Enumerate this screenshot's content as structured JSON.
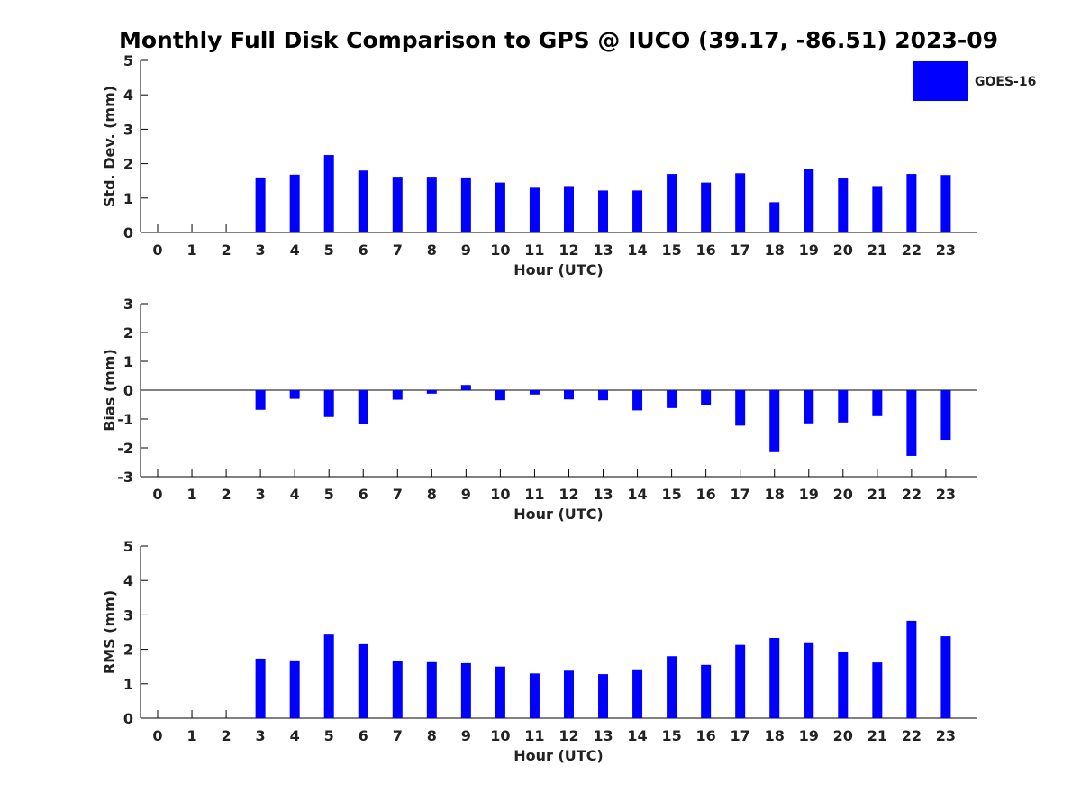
{
  "title": "Monthly Full Disk Comparison to GPS @ IUCO (39.17, -86.51) 2023-09",
  "legend": {
    "label": "GOES-16",
    "color": "#0000ff",
    "placement": "top-right"
  },
  "chart_data": [
    {
      "type": "bar",
      "xlabel": "Hour (UTC)",
      "ylabel": "Std. Dev. (mm)",
      "ylim": [
        0,
        5
      ],
      "yticks": [
        0,
        1,
        2,
        3,
        4,
        5
      ],
      "categories": [
        "0",
        "1",
        "2",
        "3",
        "4",
        "5",
        "6",
        "7",
        "8",
        "9",
        "10",
        "11",
        "12",
        "13",
        "14",
        "15",
        "16",
        "17",
        "18",
        "19",
        "20",
        "21",
        "22",
        "23"
      ],
      "series": [
        {
          "name": "GOES-16",
          "color": "#0000ff",
          "values": [
            null,
            null,
            null,
            1.6,
            1.68,
            2.25,
            1.8,
            1.62,
            1.62,
            1.6,
            1.45,
            1.3,
            1.35,
            1.22,
            1.22,
            1.7,
            1.45,
            1.72,
            0.88,
            1.85,
            1.57,
            1.35,
            1.7,
            1.67
          ]
        }
      ]
    },
    {
      "type": "bar",
      "xlabel": "Hour (UTC)",
      "ylabel": "Bias (mm)",
      "ylim": [
        -3,
        3
      ],
      "yticks": [
        -3,
        -2,
        -1,
        0,
        1,
        2,
        3
      ],
      "categories": [
        "0",
        "1",
        "2",
        "3",
        "4",
        "5",
        "6",
        "7",
        "8",
        "9",
        "10",
        "11",
        "12",
        "13",
        "14",
        "15",
        "16",
        "17",
        "18",
        "19",
        "20",
        "21",
        "22",
        "23"
      ],
      "series": [
        {
          "name": "GOES-16",
          "color": "#0000ff",
          "values": [
            null,
            null,
            null,
            -0.68,
            -0.3,
            -0.93,
            -1.18,
            -0.33,
            -0.12,
            0.18,
            -0.35,
            -0.15,
            -0.32,
            -0.35,
            -0.7,
            -0.62,
            -0.52,
            -1.23,
            -2.15,
            -1.15,
            -1.12,
            -0.9,
            -2.28,
            -1.72
          ]
        }
      ]
    },
    {
      "type": "bar",
      "xlabel": "Hour (UTC)",
      "ylabel": "RMS (mm)",
      "ylim": [
        0,
        5
      ],
      "yticks": [
        0,
        1,
        2,
        3,
        4,
        5
      ],
      "categories": [
        "0",
        "1",
        "2",
        "3",
        "4",
        "5",
        "6",
        "7",
        "8",
        "9",
        "10",
        "11",
        "12",
        "13",
        "14",
        "15",
        "16",
        "17",
        "18",
        "19",
        "20",
        "21",
        "22",
        "23"
      ],
      "series": [
        {
          "name": "GOES-16",
          "color": "#0000ff",
          "values": [
            null,
            null,
            null,
            1.73,
            1.68,
            2.43,
            2.15,
            1.65,
            1.63,
            1.6,
            1.5,
            1.3,
            1.38,
            1.28,
            1.42,
            1.8,
            1.55,
            2.13,
            2.33,
            2.18,
            1.93,
            1.62,
            2.83,
            2.38
          ]
        }
      ]
    }
  ]
}
